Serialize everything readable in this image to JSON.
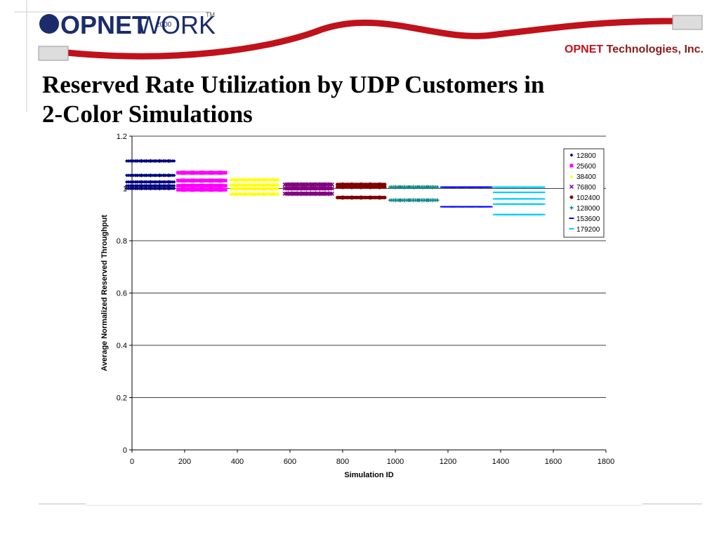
{
  "header": {
    "logo_bold": "OPNET",
    "logo_light": "WORK",
    "logo_year": "2000",
    "logo_tm": "TM",
    "company_brand": "OPNET",
    "company_rest": "Technologies, Inc."
  },
  "title_lines": [
    "Reserved Rate Utilization by UDP Customers in",
    "2-Color Simulations"
  ],
  "chart_data": {
    "type": "scatter",
    "x_label": "Simulation ID",
    "y_label": "Average Normalized Reserved Throughput",
    "xlim": [
      0,
      1800
    ],
    "xticks": [
      0,
      200,
      400,
      600,
      800,
      1000,
      1200,
      1400,
      1600,
      1800
    ],
    "ylim": [
      0,
      1.2
    ],
    "yticks": [
      0,
      0.2,
      0.4,
      0.6,
      0.8,
      1,
      1.2
    ],
    "grid": true,
    "legend": "upper right",
    "series": [
      {
        "name": "12800",
        "color": "#000080",
        "marker": "diamond",
        "x": [
          0,
          35,
          70,
          105,
          140,
          0,
          35,
          70,
          105,
          140,
          0,
          35,
          70,
          105,
          140,
          0,
          35,
          70,
          105,
          140,
          0,
          35,
          70,
          105,
          140
        ],
        "values": [
          1.105,
          1.105,
          1.105,
          1.105,
          1.105,
          1.05,
          1.05,
          1.05,
          1.05,
          1.05,
          1.025,
          1.025,
          1.025,
          1.025,
          1.025,
          1.01,
          1.01,
          1.01,
          1.01,
          1.01,
          1.0,
          1.0,
          1.0,
          1.0,
          1.0
        ]
      },
      {
        "name": "25600",
        "color": "#ff00ff",
        "marker": "square",
        "x": [
          195,
          230,
          265,
          300,
          335,
          195,
          230,
          265,
          300,
          335,
          195,
          230,
          265,
          300,
          335,
          195,
          230,
          265,
          300,
          335
        ],
        "values": [
          1.06,
          1.06,
          1.06,
          1.06,
          1.06,
          1.03,
          1.03,
          1.03,
          1.03,
          1.03,
          1.01,
          1.01,
          1.01,
          1.01,
          1.01,
          0.995,
          0.995,
          0.995,
          0.995,
          0.995
        ]
      },
      {
        "name": "38400",
        "color": "#ffff00",
        "marker": "triangle",
        "x": [
          395,
          430,
          465,
          500,
          535,
          395,
          430,
          465,
          500,
          535,
          395,
          430,
          465,
          500,
          535,
          395,
          430,
          465,
          500,
          535
        ],
        "values": [
          1.035,
          1.035,
          1.035,
          1.035,
          1.035,
          1.015,
          1.015,
          1.015,
          1.015,
          1.015,
          1.0,
          1.0,
          1.0,
          1.0,
          1.0,
          0.98,
          0.98,
          0.98,
          0.98,
          0.98
        ]
      },
      {
        "name": "76800",
        "color": "#800080",
        "marker": "cross",
        "x": [
          600,
          635,
          670,
          705,
          740,
          600,
          635,
          670,
          705,
          740,
          600,
          635,
          670,
          705,
          740
        ],
        "values": [
          1.015,
          1.015,
          1.015,
          1.015,
          1.015,
          1.0,
          1.0,
          1.0,
          1.0,
          1.0,
          0.98,
          0.98,
          0.98,
          0.98,
          0.98
        ]
      },
      {
        "name": "102400",
        "color": "#800000",
        "marker": "circle",
        "x": [
          800,
          835,
          870,
          905,
          940,
          800,
          835,
          870,
          905,
          940,
          800,
          835,
          870,
          905,
          940
        ],
        "values": [
          1.015,
          1.015,
          1.015,
          1.015,
          1.015,
          1.005,
          1.005,
          1.005,
          1.005,
          1.005,
          0.965,
          0.965,
          0.965,
          0.965,
          0.965
        ]
      },
      {
        "name": "128000",
        "color": "#008080",
        "marker": "plus",
        "x": [
          1000,
          1035,
          1070,
          1105,
          1140,
          1000,
          1035,
          1070,
          1105,
          1140
        ],
        "values": [
          1.005,
          1.005,
          1.005,
          1.005,
          1.005,
          0.955,
          0.955,
          0.955,
          0.955,
          0.955
        ]
      },
      {
        "name": "153600",
        "color": "#0000ff",
        "marker": "dash",
        "x": [
          1200,
          1235,
          1270,
          1305,
          1340,
          1200,
          1235,
          1270,
          1305,
          1340
        ],
        "values": [
          1.005,
          1.005,
          1.005,
          1.005,
          1.005,
          0.93,
          0.93,
          0.93,
          0.93,
          0.93
        ]
      },
      {
        "name": "179200",
        "color": "#00ccff",
        "marker": "dash",
        "x": [
          1400,
          1435,
          1470,
          1505,
          1540,
          1400,
          1435,
          1470,
          1505,
          1540,
          1400,
          1435,
          1470,
          1505,
          1540,
          1400,
          1435,
          1470,
          1505,
          1540,
          1400,
          1435,
          1470,
          1505,
          1540
        ],
        "values": [
          1.005,
          1.005,
          1.005,
          1.005,
          1.005,
          0.985,
          0.985,
          0.985,
          0.985,
          0.985,
          0.96,
          0.96,
          0.96,
          0.96,
          0.96,
          0.94,
          0.94,
          0.94,
          0.94,
          0.94,
          0.9,
          0.9,
          0.9,
          0.9,
          0.9
        ]
      }
    ]
  }
}
